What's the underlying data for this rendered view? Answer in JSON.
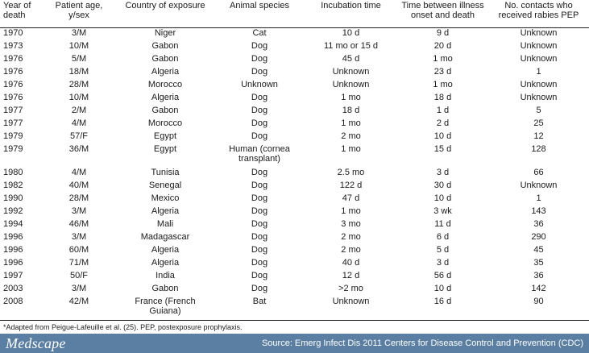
{
  "table": {
    "headers": [
      "Year of death",
      "Patient age, y/sex",
      "Country of exposure",
      "Animal species",
      "Incubation time",
      "Time between illness onset and death",
      "No. contacts who received rabies PEP"
    ],
    "rows": [
      [
        "1970",
        "3/M",
        "Niger",
        "Cat",
        "10 d",
        "9 d",
        "Unknown"
      ],
      [
        "1973",
        "10/M",
        "Gabon",
        "Dog",
        "11 mo or 15 d",
        "20 d",
        "Unknown"
      ],
      [
        "1976",
        "5/M",
        "Gabon",
        "Dog",
        "45 d",
        "1 mo",
        "Unknown"
      ],
      [
        "1976",
        "18/M",
        "Algeria",
        "Dog",
        "Unknown",
        "23 d",
        "1"
      ],
      [
        "1976",
        "28/M",
        "Morocco",
        "Unknown",
        "Unknown",
        "1 mo",
        "Unknown"
      ],
      [
        "1976",
        "10/M",
        "Algeria",
        "Dog",
        "1 mo",
        "18 d",
        "Unknown"
      ],
      [
        "1977",
        "2/M",
        "Gabon",
        "Dog",
        "18 d",
        "1 d",
        "5"
      ],
      [
        "1977",
        "4/M",
        "Morocco",
        "Dog",
        "1 mo",
        "2 d",
        "25"
      ],
      [
        "1979",
        "57/F",
        "Egypt",
        "Dog",
        "2 mo",
        "10 d",
        "12"
      ],
      [
        "1979",
        "36/M",
        "Egypt",
        "Human (cornea transplant)",
        "1 mo",
        "15 d",
        "128"
      ],
      [
        "1980",
        "4/M",
        "Tunisia",
        "Dog",
        "2.5 mo",
        "3 d",
        "66"
      ],
      [
        "1982",
        "40/M",
        "Senegal",
        "Dog",
        "122 d",
        "30 d",
        "Unknown"
      ],
      [
        "1990",
        "28/M",
        "Mexico",
        "Dog",
        "47 d",
        "10 d",
        "1"
      ],
      [
        "1992",
        "3/M",
        "Algeria",
        "Dog",
        "1 mo",
        "3 wk",
        "143"
      ],
      [
        "1994",
        "46/M",
        "Mali",
        "Dog",
        "3 mo",
        "11 d",
        "36"
      ],
      [
        "1996",
        "3/M",
        "Madagascar",
        "Dog",
        "2 mo",
        "6 d",
        "290"
      ],
      [
        "1996",
        "60/M",
        "Algeria",
        "Dog",
        "2 mo",
        "5 d",
        "45"
      ],
      [
        "1996",
        "71/M",
        "Algeria",
        "Dog",
        "40 d",
        "3 d",
        "35"
      ],
      [
        "1997",
        "50/F",
        "India",
        "Dog",
        "12 d",
        "56 d",
        "36"
      ],
      [
        "2003",
        "3/M",
        "Gabon",
        "Dog",
        ">2 mo",
        "10 d",
        "142"
      ],
      [
        "2008",
        "42/M",
        "France (French Guiana)",
        "Bat",
        "Unknown",
        "16 d",
        "90"
      ]
    ]
  },
  "footnote": "*Adapted from Peigue-Lafeuille et al. (25). PEP, postexposure prophylaxis.",
  "footer": {
    "logo": "Medscape",
    "source": "Source: Emerg Infect Dis 2011 Centers for Disease Control and Prevention (CDC)",
    "background_color": "#5b7fa3"
  }
}
